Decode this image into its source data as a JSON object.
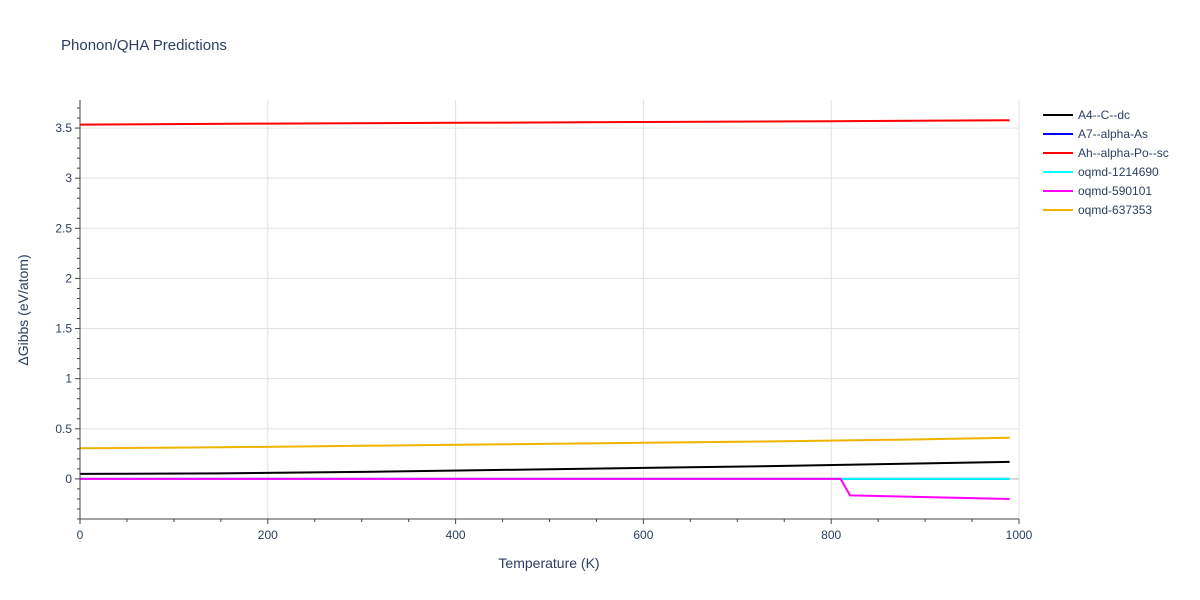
{
  "chart_data": {
    "type": "line",
    "title": "Phonon/QHA Predictions",
    "xlabel": "Temperature (K)",
    "ylabel": "ΔGibbs (eV/atom)",
    "xlim": [
      0,
      1000
    ],
    "ylim": [
      -0.4,
      3.78
    ],
    "x_ticks": [
      0,
      200,
      400,
      600,
      800,
      1000
    ],
    "y_ticks": [
      0,
      0.5,
      1,
      1.5,
      2,
      2.5,
      3,
      3.5
    ],
    "x_tick_labels": [
      "0",
      "200",
      "400",
      "600",
      "800",
      "1000"
    ],
    "y_tick_labels": [
      "0",
      "0.5",
      "1",
      "1.5",
      "2",
      "2.5",
      "3",
      "3.5"
    ],
    "grid": true,
    "legend_position": "right",
    "series": [
      {
        "name": "A4--C--dc",
        "color": "#000000",
        "x": [
          0,
          150,
          300,
          450,
          600,
          750,
          900,
          990
        ],
        "y": [
          0.05,
          0.055,
          0.07,
          0.09,
          0.11,
          0.13,
          0.155,
          0.17
        ]
      },
      {
        "name": "A7--alpha-As",
        "color": "#0000ff",
        "x": [
          0,
          990
        ],
        "y": [
          0.0,
          0.0
        ]
      },
      {
        "name": "Ah--alpha-Po--sc",
        "color": "#ff0000",
        "x": [
          0,
          200,
          400,
          600,
          800,
          990
        ],
        "y": [
          3.535,
          3.545,
          3.553,
          3.561,
          3.569,
          3.577
        ]
      },
      {
        "name": "oqmd-1214690",
        "color": "#00ffff",
        "x": [
          0,
          990
        ],
        "y": [
          0.0,
          0.0
        ]
      },
      {
        "name": "oqmd-590101",
        "color": "#ff00ff",
        "x": [
          0,
          810,
          820,
          990
        ],
        "y": [
          0.0,
          0.0,
          -0.165,
          -0.2
        ]
      },
      {
        "name": "oqmd-637353",
        "color": "#f0b400",
        "x": [
          0,
          150,
          300,
          450,
          600,
          750,
          900,
          990
        ],
        "y": [
          0.305,
          0.315,
          0.33,
          0.345,
          0.36,
          0.375,
          0.395,
          0.41
        ]
      }
    ]
  }
}
